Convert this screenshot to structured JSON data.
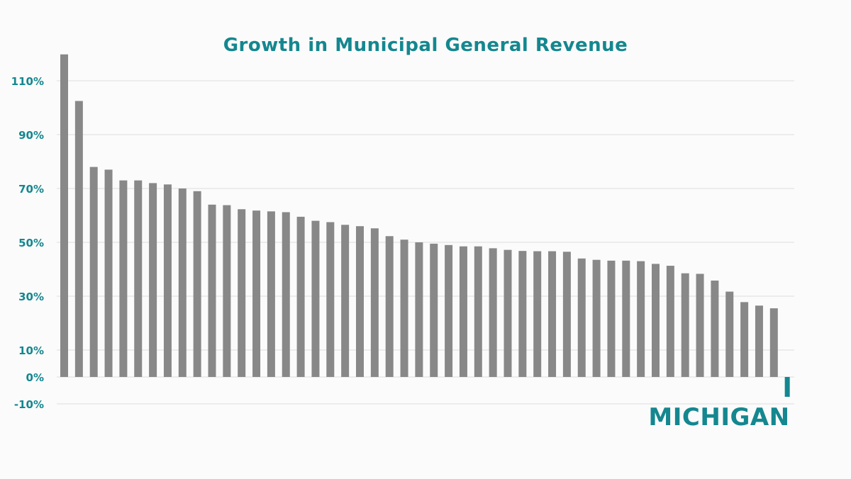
{
  "chart_data": {
    "type": "bar",
    "title": "Growth in Municipal General Revenue",
    "xlabel": "",
    "ylabel": "",
    "y_ticks": [
      {
        "value": 110,
        "label": "110%"
      },
      {
        "value": 90,
        "label": "90%"
      },
      {
        "value": 70,
        "label": "70%"
      },
      {
        "value": 50,
        "label": "50%"
      },
      {
        "value": 30,
        "label": "30%"
      },
      {
        "value": 10,
        "label": "10%"
      },
      {
        "value": 0,
        "label": "0%"
      },
      {
        "value": -10,
        "label": "-10%"
      }
    ],
    "ylim": [
      -10,
      120
    ],
    "grid": true,
    "highlight": {
      "label": "MICHIGAN",
      "value": -0.8
    },
    "values": [
      119.8,
      102.5,
      78,
      77,
      73,
      73,
      72,
      71.5,
      70,
      69,
      64,
      63.8,
      62.3,
      61.8,
      61.5,
      61.2,
      59.5,
      58,
      57.5,
      56.5,
      56,
      55.2,
      52.3,
      51,
      50,
      49.5,
      49,
      48.5,
      48.5,
      47.8,
      47.2,
      46.8,
      46.7,
      46.7,
      46.5,
      44,
      43.5,
      43.2,
      43.2,
      43,
      42,
      41.3,
      38.5,
      38.3,
      35.8,
      31.7,
      27.8,
      26.5,
      25.5
    ]
  },
  "colors": {
    "bars": "#888888",
    "highlight": "#14878f",
    "title": "#14878f",
    "tick_labels": "#14878f",
    "gridlines": "#dcdcdc"
  }
}
